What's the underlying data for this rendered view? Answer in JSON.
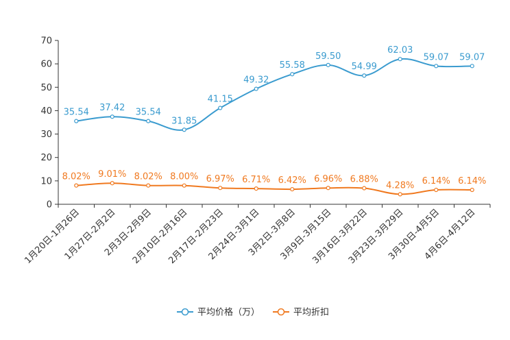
{
  "chart_data": {
    "type": "line",
    "title": "",
    "xlabel": "",
    "ylabel": "",
    "ylim": [
      0,
      70
    ],
    "yticks": [
      0,
      10,
      20,
      30,
      40,
      50,
      60,
      70
    ],
    "grid": false,
    "legend_position": "bottom-center",
    "categories": [
      "1月20日-1月26日",
      "1月27日-2月2日",
      "2月3日-2月9日",
      "2月10日-2月16日",
      "2月17日-2月23日",
      "2月24日-3月1日",
      "3月2日-3月8日",
      "3月9日-3月15日",
      "3月16日-3月22日",
      "3月23日-3月29日",
      "3月30日-4月5日",
      "4月6日-4月12日"
    ],
    "series": [
      {
        "name": "平均价格（万）",
        "color": "#3a9bcf",
        "values": [
          35.54,
          37.42,
          35.54,
          31.85,
          41.15,
          49.32,
          55.58,
          59.5,
          54.99,
          62.03,
          59.07,
          59.07
        ],
        "labels": [
          "35.54",
          "37.42",
          "35.54",
          "31.85",
          "41.15",
          "49.32",
          "55.58",
          "59.50",
          "54.99",
          "62.03",
          "59.07",
          "59.07"
        ]
      },
      {
        "name": "平均折扣",
        "color": "#f0791f",
        "values": [
          8.02,
          9.01,
          8.02,
          8.0,
          6.97,
          6.71,
          6.42,
          6.96,
          6.88,
          4.28,
          6.14,
          6.14
        ],
        "labels": [
          "8.02%",
          "9.01%",
          "8.02%",
          "8.00%",
          "6.97%",
          "6.71%",
          "6.42%",
          "6.96%",
          "6.88%",
          "4.28%",
          "6.14%",
          "6.14%"
        ]
      }
    ]
  }
}
